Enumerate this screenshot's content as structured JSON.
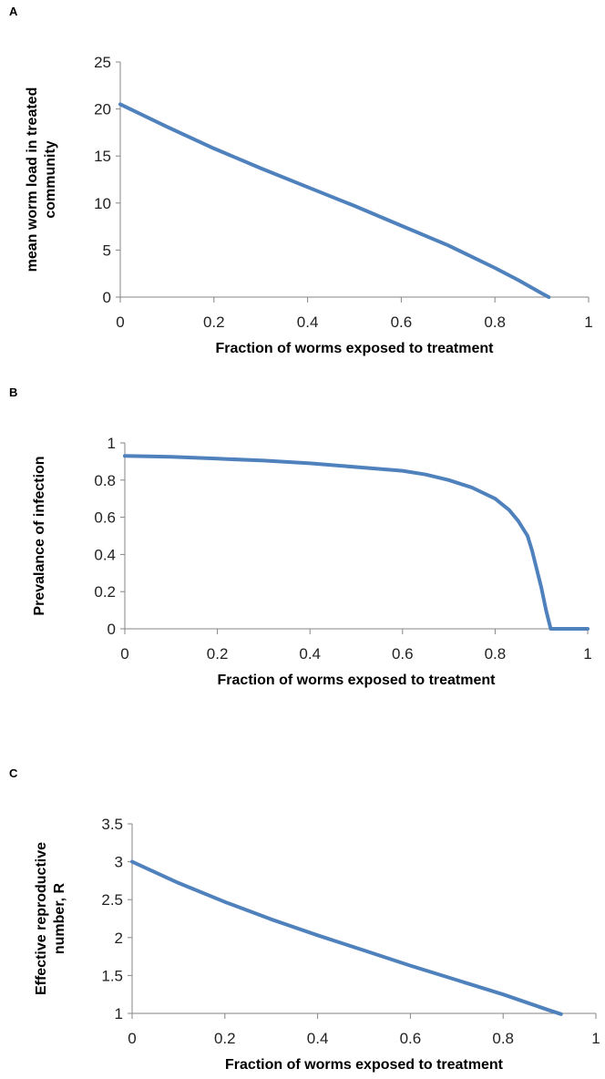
{
  "line_color": "#4f81bd",
  "axis_color": "#868686",
  "chart_data": [
    {
      "panel_label": "A",
      "type": "line",
      "xlabel": "Fraction of worms exposed to treatment",
      "ylabel": [
        "mean worm load in treated",
        "community"
      ],
      "xlim": [
        0,
        1
      ],
      "ylim": [
        0,
        25
      ],
      "xticks": [
        "0",
        "0.2",
        "0.4",
        "0.6",
        "0.8",
        "1"
      ],
      "yticks": [
        "0",
        "5",
        "10",
        "15",
        "20",
        "25"
      ],
      "grid": false,
      "x": [
        0,
        0.1,
        0.2,
        0.3,
        0.4,
        0.5,
        0.6,
        0.7,
        0.8,
        0.85,
        0.9,
        0.915
      ],
      "y": [
        20.5,
        18.1,
        15.8,
        13.7,
        11.7,
        9.7,
        7.6,
        5.5,
        3.1,
        1.8,
        0.4,
        0
      ]
    },
    {
      "panel_label": "B",
      "type": "line",
      "xlabel": "Fraction of worms exposed to treatment",
      "ylabel": [
        "Prevalance of infection"
      ],
      "xlim": [
        0,
        1
      ],
      "ylim": [
        0,
        1
      ],
      "xticks": [
        "0",
        "0.2",
        "0.4",
        "0.6",
        "0.8",
        "1"
      ],
      "yticks": [
        "0",
        "0.2",
        "0.4",
        "0.6",
        "0.8",
        "1"
      ],
      "grid": false,
      "x": [
        0,
        0.1,
        0.2,
        0.3,
        0.4,
        0.5,
        0.6,
        0.65,
        0.7,
        0.75,
        0.8,
        0.83,
        0.85,
        0.87,
        0.88,
        0.89,
        0.9,
        0.91,
        0.92,
        0.93,
        1.0
      ],
      "y": [
        0.93,
        0.925,
        0.915,
        0.905,
        0.89,
        0.87,
        0.85,
        0.83,
        0.8,
        0.76,
        0.7,
        0.64,
        0.58,
        0.5,
        0.42,
        0.32,
        0.22,
        0.1,
        0.0,
        0.0,
        0.0
      ]
    },
    {
      "panel_label": "C",
      "type": "line",
      "xlabel": "Fraction of worms exposed to treatment",
      "ylabel": [
        "Effective reproductive",
        "number, R"
      ],
      "xlim": [
        0,
        1
      ],
      "ylim": [
        1,
        3.5
      ],
      "xticks": [
        "0",
        "0.2",
        "0.4",
        "0.6",
        "0.8",
        "1"
      ],
      "yticks": [
        "1",
        "1.5",
        "2",
        "2.5",
        "3",
        "3.5"
      ],
      "grid": false,
      "x": [
        0,
        0.1,
        0.2,
        0.3,
        0.4,
        0.5,
        0.6,
        0.7,
        0.8,
        0.9,
        0.925
      ],
      "y": [
        3.0,
        2.72,
        2.47,
        2.24,
        2.03,
        1.83,
        1.63,
        1.44,
        1.25,
        1.04,
        0.99
      ]
    }
  ]
}
